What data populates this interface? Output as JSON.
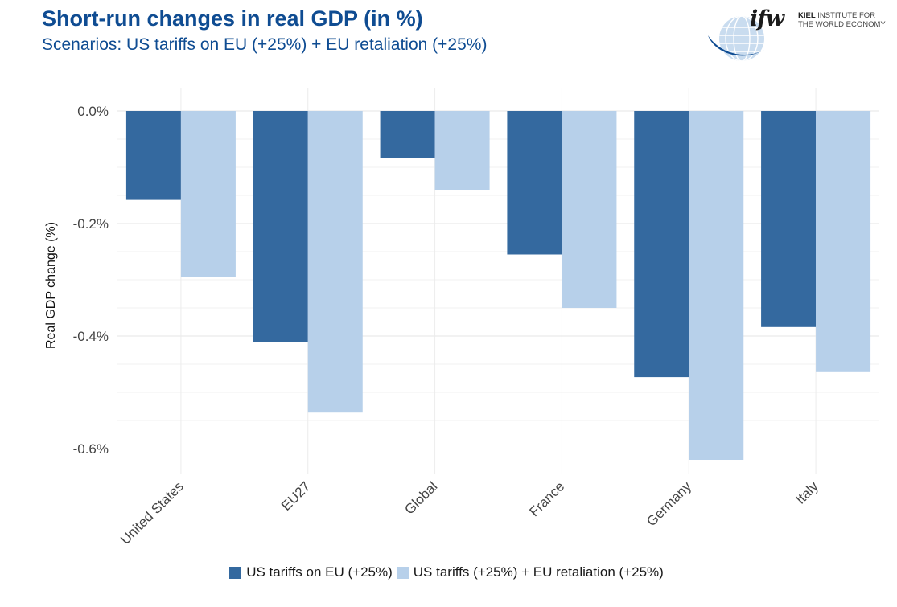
{
  "header": {
    "title": "Short-run changes in real GDP (in %)",
    "subtitle": "Scenarios: US tariffs on EU (+25%) + EU retaliation (+25%)"
  },
  "logo": {
    "mark": "ifw",
    "line1_strong": "KIEL",
    "line1": "INSTITUTE FOR",
    "line2": "THE WORLD ECONOMY"
  },
  "colors": {
    "series1": "#34699f",
    "series2": "#b7d0ea",
    "title": "#0f4c92"
  },
  "chart_data": {
    "type": "bar",
    "title": "Short-run changes in real GDP (in %)",
    "subtitle": "Scenarios: US tariffs on EU (+25%) + EU retaliation (+25%)",
    "xlabel": "",
    "ylabel": "Real GDP change (%)",
    "ylim": [
      -0.63,
      0.0
    ],
    "yticks": [
      0.0,
      -0.2,
      -0.4,
      -0.6
    ],
    "ytick_labels": [
      "0.0%",
      "-0.2%",
      "-0.4%",
      "-0.6%"
    ],
    "categories": [
      "United States",
      "EU27",
      "Global",
      "France",
      "Germany",
      "Italy"
    ],
    "series": [
      {
        "name": "US tariffs on EU (+25%)",
        "color": "#34699f",
        "values": [
          -0.158,
          -0.41,
          -0.084,
          -0.255,
          -0.473,
          -0.384
        ]
      },
      {
        "name": "US tariffs (+25%) + EU retaliation (+25%)",
        "color": "#b7d0ea",
        "values": [
          -0.295,
          -0.536,
          -0.14,
          -0.35,
          -0.62,
          -0.464
        ]
      }
    ],
    "grid": true,
    "legend_position": "bottom"
  }
}
